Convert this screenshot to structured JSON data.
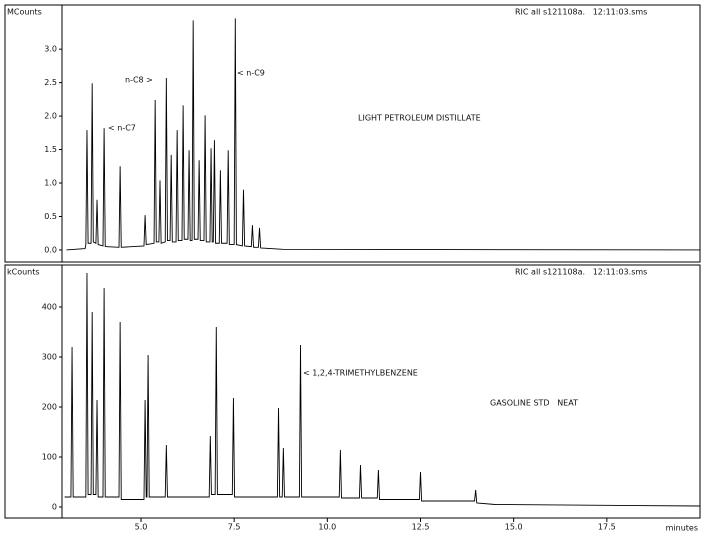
{
  "chart_data": [
    {
      "type": "line",
      "ylabel": "MCounts",
      "header": "RIC all s121108a.   12:11:03.sms",
      "annotations": [
        "< n-C7",
        "n-C8 >",
        "< n-C9",
        "LIGHT PETROLEUM DISTILLATE"
      ],
      "color": "#000000",
      "xlim": [
        2.88,
        20.0
      ],
      "ylim": [
        -0.18,
        3.66
      ],
      "yticks": [
        {
          "value": 0,
          "label": "0.0"
        },
        0.5,
        {
          "value": 1,
          "label": "1.0"
        },
        1.5,
        {
          "value": 2,
          "label": "2.0"
        },
        2.5,
        {
          "value": 3,
          "label": "3.0"
        }
      ],
      "x": [
        3.0,
        3.5,
        3.52,
        3.55,
        3.58,
        3.66,
        3.69,
        3.72,
        3.79,
        3.82,
        3.85,
        3.98,
        4.01,
        4.04,
        4.41,
        4.44,
        4.47,
        5.08,
        5.11,
        5.14,
        5.35,
        5.38,
        5.41,
        5.48,
        5.51,
        5.54,
        5.65,
        5.68,
        5.71,
        5.78,
        5.81,
        5.84,
        5.94,
        5.97,
        6.0,
        6.1,
        6.13,
        6.16,
        6.26,
        6.29,
        6.32,
        6.37,
        6.4,
        6.43,
        6.53,
        6.56,
        6.59,
        6.69,
        6.72,
        6.75,
        6.85,
        6.88,
        6.91,
        6.94,
        6.97,
        7.0,
        7.1,
        7.13,
        7.16,
        7.31,
        7.34,
        7.37,
        7.5,
        7.53,
        7.56,
        7.72,
        7.75,
        7.78,
        7.96,
        7.99,
        8.02,
        8.15,
        8.18,
        8.21,
        8.8,
        20.0
      ],
      "values": [
        0.0,
        0.02,
        0.08,
        1.79,
        0.1,
        0.1,
        2.49,
        0.12,
        0.1,
        0.75,
        0.08,
        0.06,
        1.82,
        0.05,
        0.04,
        1.25,
        0.04,
        0.06,
        0.52,
        0.08,
        0.1,
        2.24,
        0.12,
        0.12,
        1.04,
        0.1,
        0.12,
        2.57,
        0.14,
        0.14,
        1.42,
        0.12,
        0.12,
        1.79,
        0.14,
        0.14,
        2.16,
        0.16,
        0.16,
        1.49,
        0.14,
        0.14,
        3.43,
        0.16,
        0.16,
        1.34,
        0.14,
        0.14,
        2.01,
        0.12,
        0.12,
        1.52,
        0.12,
        0.12,
        1.64,
        0.1,
        0.1,
        1.19,
        0.1,
        0.1,
        1.49,
        0.08,
        0.08,
        3.46,
        0.08,
        0.06,
        0.9,
        0.06,
        0.05,
        0.37,
        0.04,
        0.04,
        0.33,
        0.03,
        0.01,
        0.0
      ]
    },
    {
      "type": "line",
      "ylabel": "kCounts",
      "header": "RIC all s121108a.   12:11:03.sms",
      "annotations": [
        "< 1,2,4-TRIMETHYLBENZENE",
        "GASOLINE STD   NEAT"
      ],
      "color": "#000000",
      "xlabel": "minutes",
      "xlim": [
        2.88,
        20.0
      ],
      "ylim": [
        -22,
        484
      ],
      "xticks": [
        {
          "value": 5,
          "label": "5.0"
        },
        7.5,
        {
          "value": 10,
          "label": "10.0"
        },
        12.5,
        {
          "value": 15,
          "label": "15.0"
        },
        17.5
      ],
      "yticks": [
        0,
        100,
        200,
        300,
        400
      ],
      "x": [
        2.95,
        3.12,
        3.15,
        3.18,
        3.52,
        3.55,
        3.58,
        3.66,
        3.69,
        3.72,
        3.79,
        3.82,
        3.85,
        3.98,
        4.01,
        4.04,
        4.41,
        4.44,
        4.47,
        5.08,
        5.11,
        5.14,
        5.16,
        5.19,
        5.22,
        5.65,
        5.68,
        5.71,
        6.83,
        6.86,
        6.89,
        6.99,
        7.02,
        7.05,
        7.45,
        7.48,
        7.51,
        8.66,
        8.69,
        8.72,
        8.79,
        8.82,
        8.85,
        9.25,
        9.28,
        9.31,
        10.32,
        10.35,
        10.38,
        10.86,
        10.89,
        10.92,
        11.34,
        11.37,
        11.4,
        12.47,
        12.5,
        12.53,
        13.95,
        13.98,
        14.01,
        14.5,
        20.0
      ],
      "values": [
        20,
        20,
        320,
        20,
        20,
        468,
        25,
        25,
        390,
        25,
        25,
        214,
        20,
        20,
        438,
        20,
        20,
        370,
        15,
        15,
        214,
        20,
        20,
        304,
        20,
        20,
        124,
        20,
        20,
        142,
        25,
        25,
        360,
        25,
        25,
        218,
        20,
        20,
        198,
        20,
        20,
        118,
        20,
        20,
        324,
        20,
        20,
        114,
        18,
        18,
        84,
        18,
        18,
        74,
        15,
        15,
        70,
        12,
        12,
        34,
        8,
        5,
        2
      ]
    }
  ]
}
